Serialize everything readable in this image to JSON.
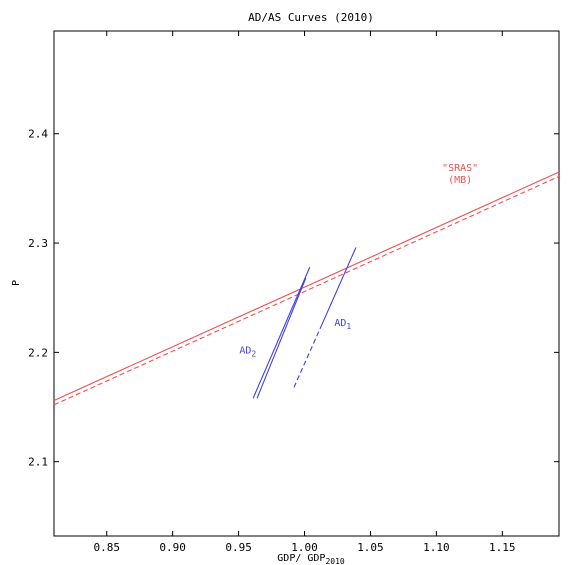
{
  "chart_data": {
    "type": "line",
    "title": "AD/AS Curves (2010)",
    "xlabel": "GDP/ GDP",
    "xlabel_sub": "2010",
    "ylabel": "P",
    "xlim": [
      0.81,
      1.193
    ],
    "ylim": [
      2.032,
      2.494
    ],
    "x_ticks": [
      0.85,
      0.9,
      0.95,
      1.0,
      1.05,
      1.1,
      1.15
    ],
    "x_tick_labels": [
      "0.85",
      "0.90",
      "0.95",
      "1.00",
      "1.05",
      "1.10",
      "1.15"
    ],
    "y_ticks": [
      2.1,
      2.2,
      2.3,
      2.4
    ],
    "y_tick_labels": [
      "2.1",
      "2.2",
      "2.3",
      "2.4"
    ],
    "grid": false,
    "series": [
      {
        "key": "sras_solid",
        "color": "#ef5050",
        "dash": "solid",
        "x": [
          0.81,
          1.193
        ],
        "y": [
          2.156,
          2.365
        ]
      },
      {
        "key": "sras_dashed",
        "color": "#ef5050",
        "dash": "dashed",
        "x": [
          0.81,
          1.193
        ],
        "y": [
          2.152,
          2.361
        ]
      },
      {
        "key": "ad2_line_a",
        "color": "#4040e0",
        "dash": "solid",
        "x": [
          0.961,
          1.004
        ],
        "y": [
          2.158,
          2.278
        ]
      },
      {
        "key": "ad2_line_b",
        "color": "#4040e0",
        "dash": "solid",
        "x": [
          0.964,
          1.001
        ],
        "y": [
          2.158,
          2.268
        ]
      },
      {
        "key": "ad1_solid",
        "color": "#4040e0",
        "dash": "solid",
        "x": [
          1.013,
          1.039
        ],
        "y": [
          2.225,
          2.296
        ]
      },
      {
        "key": "ad1_dashed",
        "color": "#4040e0",
        "dash": "dashed",
        "x": [
          0.992,
          1.013
        ],
        "y": [
          2.168,
          2.225
        ]
      }
    ],
    "annotations": [
      {
        "key": "sras_label",
        "text": "\"SRAS\"",
        "x": 1.118,
        "y": 2.366,
        "color": "#ef5050"
      },
      {
        "key": "mb_label",
        "text": "(MB)",
        "x": 1.118,
        "y": 2.355,
        "color": "#ef5050"
      },
      {
        "key": "ad1_label",
        "text": "AD",
        "sub": "1",
        "x": 1.029,
        "y": 2.224,
        "color": "#4040e0"
      },
      {
        "key": "ad2_label",
        "text": "AD",
        "sub": "2",
        "x": 0.957,
        "y": 2.199,
        "color": "#4040e0"
      }
    ]
  }
}
